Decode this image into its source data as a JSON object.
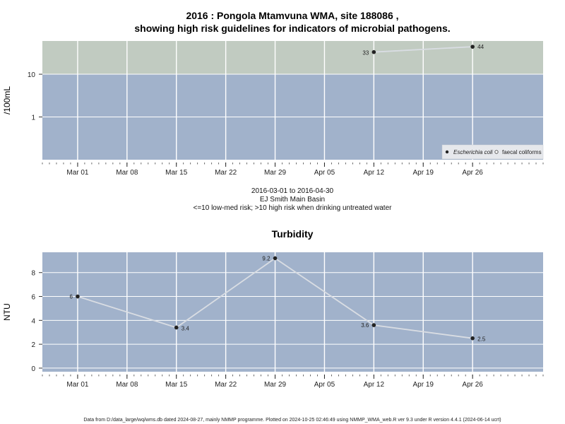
{
  "title_line1": "2016 : Pongola Mtamvuna WMA, site 188086 ,",
  "title_line2": "showing high risk guidelines for indicators of microbial pathogens.",
  "subtitle": {
    "range": "2016-03-01 to 2016-04-30",
    "lab": "EJ Smith Main Basin",
    "risk": "<=10 low-med risk; >10 high risk when drinking untreated water"
  },
  "footer": "Data from D:/data_large/wq/wms.db dated 2024-08-27, mainly NMMP programme. Plotted on 2024-10-25 02:46:49 using NMMP_WMA_web.R ver 9.3 under R version 4.4.1 (2024-06-14 ucrt)",
  "colors": {
    "high_risk": "#c1cbc1",
    "low_risk": "#a1b2cb",
    "line": "#d9dde3",
    "point": "#222222",
    "grid": "#ffffff"
  },
  "chart_data": [
    {
      "type": "line",
      "ylabel": "/100mL",
      "yscale": "log",
      "threshold": 10,
      "xlim": [
        "2016-02-25",
        "2016-05-06"
      ],
      "ylim": [
        0.1,
        60
      ],
      "x_ticks": [
        "Mar 01",
        "Mar 08",
        "Mar 15",
        "Mar 22",
        "Mar 29",
        "Apr 05",
        "Apr 12",
        "Apr 19",
        "Apr 26"
      ],
      "x_tick_dates": [
        "2016-03-01",
        "2016-03-08",
        "2016-03-15",
        "2016-03-22",
        "2016-03-29",
        "2016-04-05",
        "2016-04-12",
        "2016-04-19",
        "2016-04-26"
      ],
      "y_ticks": [
        1,
        10
      ],
      "y_tick_labels": [
        "1",
        "10"
      ],
      "legend_position": "bottom-right",
      "legend": [
        "Escherichia coli",
        "faecal coliforms"
      ],
      "series": [
        {
          "name": "Escherichia coli",
          "x": [
            "2016-04-12",
            "2016-04-26"
          ],
          "values": [
            33,
            44
          ],
          "labels": [
            "33",
            "44"
          ]
        }
      ]
    },
    {
      "type": "line",
      "title": "Turbidity",
      "ylabel": "NTU",
      "xlim": [
        "2016-02-25",
        "2016-05-06"
      ],
      "ylim": [
        -0.3,
        9.7
      ],
      "x_ticks": [
        "Mar 01",
        "Mar 08",
        "Mar 15",
        "Mar 22",
        "Mar 29",
        "Apr 05",
        "Apr 12",
        "Apr 19",
        "Apr 26"
      ],
      "x_tick_dates": [
        "2016-03-01",
        "2016-03-08",
        "2016-03-15",
        "2016-03-22",
        "2016-03-29",
        "2016-04-05",
        "2016-04-12",
        "2016-04-19",
        "2016-04-26"
      ],
      "y_ticks": [
        0,
        2,
        4,
        6,
        8
      ],
      "y_tick_labels": [
        "0",
        "2",
        "4",
        "6",
        "8"
      ],
      "series": [
        {
          "x": [
            "2016-03-01",
            "2016-03-15",
            "2016-03-29",
            "2016-04-12",
            "2016-04-26"
          ],
          "values": [
            6,
            3.4,
            9.2,
            3.6,
            2.5
          ],
          "labels": [
            "6",
            "3.4",
            "9.2",
            "3.6",
            "2.5"
          ]
        }
      ]
    }
  ]
}
